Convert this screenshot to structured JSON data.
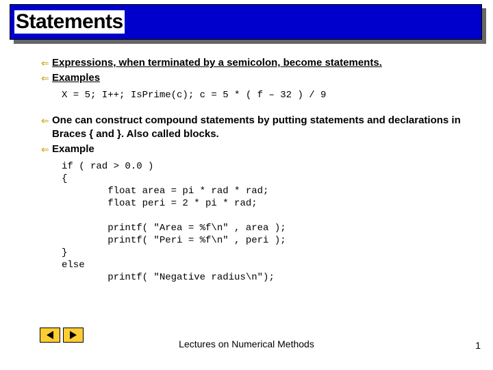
{
  "title": "Statements",
  "bullets": {
    "b1": "Expressions, when terminated by a semicolon, become statements.",
    "b2": "Examples",
    "b3": "One can construct compound statements by putting statements and declarations in Braces { and }. Also called blocks.",
    "b4": "Example"
  },
  "code1": "X = 5; I++; IsPrime(c); c = 5 * ( f – 32 ) / 9",
  "code2": "if ( rad > 0.0 )\n{\n        float area = pi * rad * rad;\n        float peri = 2 * pi * rad;\n\n        printf( \"Area = %f\\n\" , area );\n        printf( \"Peri = %f\\n\" , peri );\n}\nelse\n        printf( \"Negative radius\\n\");",
  "footer": "Lectures on Numerical Methods",
  "page": "1",
  "colors": {
    "title_bg": "#0000cc",
    "bullet_color": "#cc9900",
    "nav_bg": "#ffcc33"
  }
}
